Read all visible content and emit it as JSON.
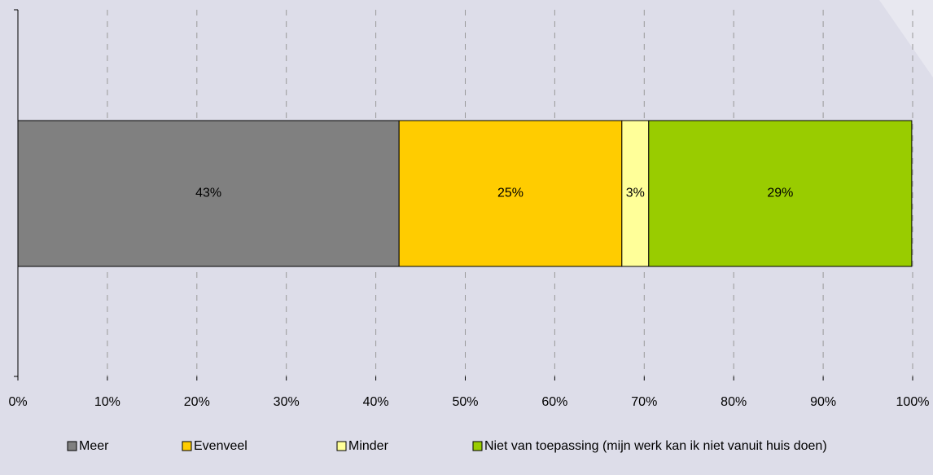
{
  "chart_data": {
    "type": "bar",
    "orientation": "horizontal",
    "stacked": true,
    "categories": [
      null
    ],
    "series": [
      {
        "name": "Meer",
        "color": "#808080",
        "values": [
          42.6
        ],
        "value_labels": [
          "43%"
        ]
      },
      {
        "name": "Evenveel",
        "color": "#ffcc00",
        "values": [
          24.9
        ],
        "value_labels": [
          "25%"
        ]
      },
      {
        "name": "Minder",
        "color": "#ffff99",
        "values": [
          3.0
        ],
        "value_labels": [
          "3%"
        ]
      },
      {
        "name": "Niet van toepassing (mijn werk kan ik niet vanuit huis doen)",
        "color": "#99cc00",
        "values": [
          29.4
        ],
        "value_labels": [
          "29%"
        ]
      }
    ],
    "xlim": [
      0,
      100
    ],
    "xticks": [
      {
        "value": 0,
        "label": "0%"
      },
      {
        "value": 10,
        "label": "10%"
      },
      {
        "value": 20,
        "label": "20%"
      },
      {
        "value": 30,
        "label": "30%"
      },
      {
        "value": 40,
        "label": "40%"
      },
      {
        "value": 50,
        "label": "50%"
      },
      {
        "value": 60,
        "label": "60%"
      },
      {
        "value": 70,
        "label": "70%"
      },
      {
        "value": 80,
        "label": "80%"
      },
      {
        "value": 90,
        "label": "90%"
      },
      {
        "value": 100,
        "label": "100%"
      }
    ],
    "grid": true,
    "legend": "bottom"
  }
}
